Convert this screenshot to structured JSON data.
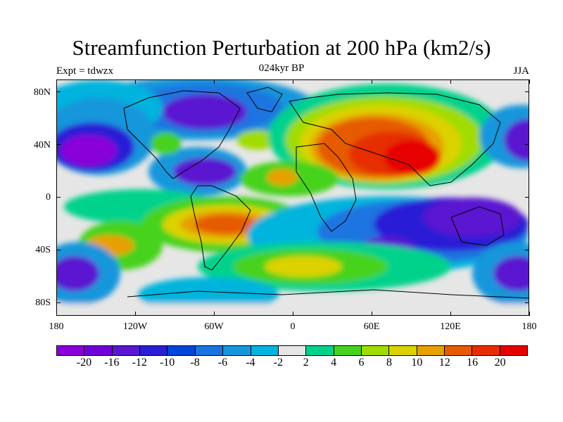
{
  "title": "Streamfunction Perturbation at 200 hPa (km2/s)",
  "experiment": "Expt = tdwzx",
  "period": "024kyr BP",
  "season": "JJA",
  "lat_ticks": [
    "80N",
    "40N",
    "0",
    "40S",
    "80S"
  ],
  "lon_ticks": [
    "180",
    "120W",
    "60W",
    "0",
    "60E",
    "120E",
    "180"
  ],
  "colorbar": {
    "colors": [
      "#8a00d9",
      "#7000d9",
      "#5a17d0",
      "#2a1fd6",
      "#0047d9",
      "#1a74e0",
      "#1596db",
      "#00b4dd",
      "#e6e6e6",
      "#00d28c",
      "#46d21e",
      "#a0dc00",
      "#dcd200",
      "#e6a000",
      "#e65a00",
      "#e62d00",
      "#e60000"
    ],
    "labels": [
      "-20",
      "-16",
      "-12",
      "-10",
      "-8",
      "-6",
      "-4",
      "-2",
      "2",
      "4",
      "6",
      "8",
      "10",
      "12",
      "16",
      "20"
    ]
  }
}
